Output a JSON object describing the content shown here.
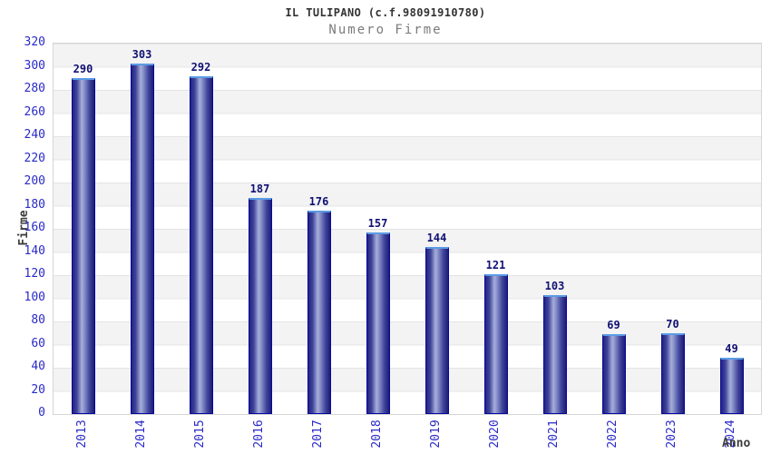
{
  "header": {
    "title": "IL TULIPANO (c.f.98091910780)",
    "subtitle": "Numero Firme"
  },
  "chart_data": {
    "type": "bar",
    "title": "IL TULIPANO (c.f.98091910780)",
    "subtitle": "Numero Firme",
    "categories": [
      "2013",
      "2014",
      "2015",
      "2016",
      "2017",
      "2018",
      "2019",
      "2020",
      "2021",
      "2022",
      "2023",
      "2024"
    ],
    "values": [
      290,
      303,
      292,
      187,
      176,
      157,
      144,
      121,
      103,
      69,
      70,
      49
    ],
    "xlabel": "Anno",
    "ylabel": "Firme",
    "ylim": [
      0,
      320
    ],
    "ytick_step": 20,
    "grid": "horizontal-bands-alternating",
    "legend": "none",
    "colors": {
      "bar_border": "#0707a2",
      "bar_top_highlight": "#5b9be4",
      "bar_gradient_dark": "#1d1d74",
      "bar_gradient_light": "#a6aed8",
      "tick_label": "#2a2ac8",
      "value_label": "#101073",
      "band_gray": "#f3f3f3",
      "gridline": "#e4e4e4",
      "title": "#333333",
      "subtitle": "#7b7b7b",
      "axis_title": "#3c3c3c",
      "plot_border": "#d6d6d6"
    }
  }
}
